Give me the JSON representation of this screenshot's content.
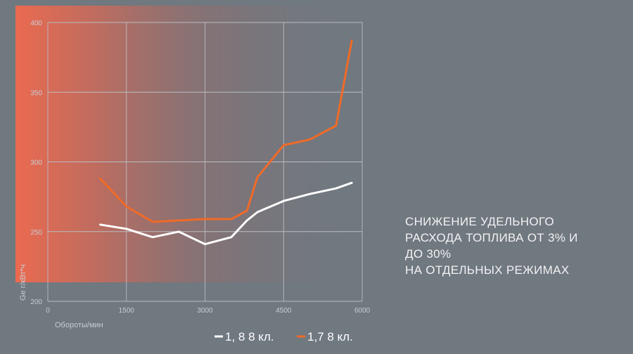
{
  "chart_data": {
    "type": "line",
    "xlabel": "Обороты/мин",
    "ylabel": "Ge г/кВт*ч",
    "xlim": [
      0,
      6000
    ],
    "ylim": [
      200,
      400
    ],
    "xticks": [
      "0",
      "1500",
      "3000",
      "4500",
      "6000"
    ],
    "yticks": [
      "200",
      "250",
      "300",
      "350",
      "400"
    ],
    "grid": true,
    "legend_position": "bottom",
    "series": [
      {
        "name": "1, 8 8 кл.",
        "color": "#ffffff",
        "x": [
          1000,
          1500,
          2000,
          2500,
          3000,
          3500,
          3800,
          4000,
          4500,
          5000,
          5500,
          5800
        ],
        "y": [
          255,
          252,
          246,
          250,
          241,
          246,
          258,
          264,
          272,
          277,
          281,
          285
        ]
      },
      {
        "name": "1,7 8 кл.",
        "color": "#f06a28",
        "x": [
          1000,
          1500,
          2000,
          2500,
          3000,
          3500,
          3800,
          4000,
          4500,
          5000,
          5500,
          5800
        ],
        "y": [
          288,
          268,
          257,
          258,
          259,
          259,
          265,
          289,
          312,
          316,
          326,
          387
        ]
      }
    ]
  },
  "tagline": {
    "line1": "СНИЖЕНИЕ УДЕЛЬНОГО",
    "line2": "РАСХОДА ТОПЛИВА ОТ 3% И",
    "line3": "ДО 30%",
    "line4": "НА ОТДЕЛЬНЫХ РЕЖИМАХ"
  },
  "colors": {
    "background": "#707880",
    "gradient_start": "#e8684f",
    "grid": "#b9bdc2"
  }
}
